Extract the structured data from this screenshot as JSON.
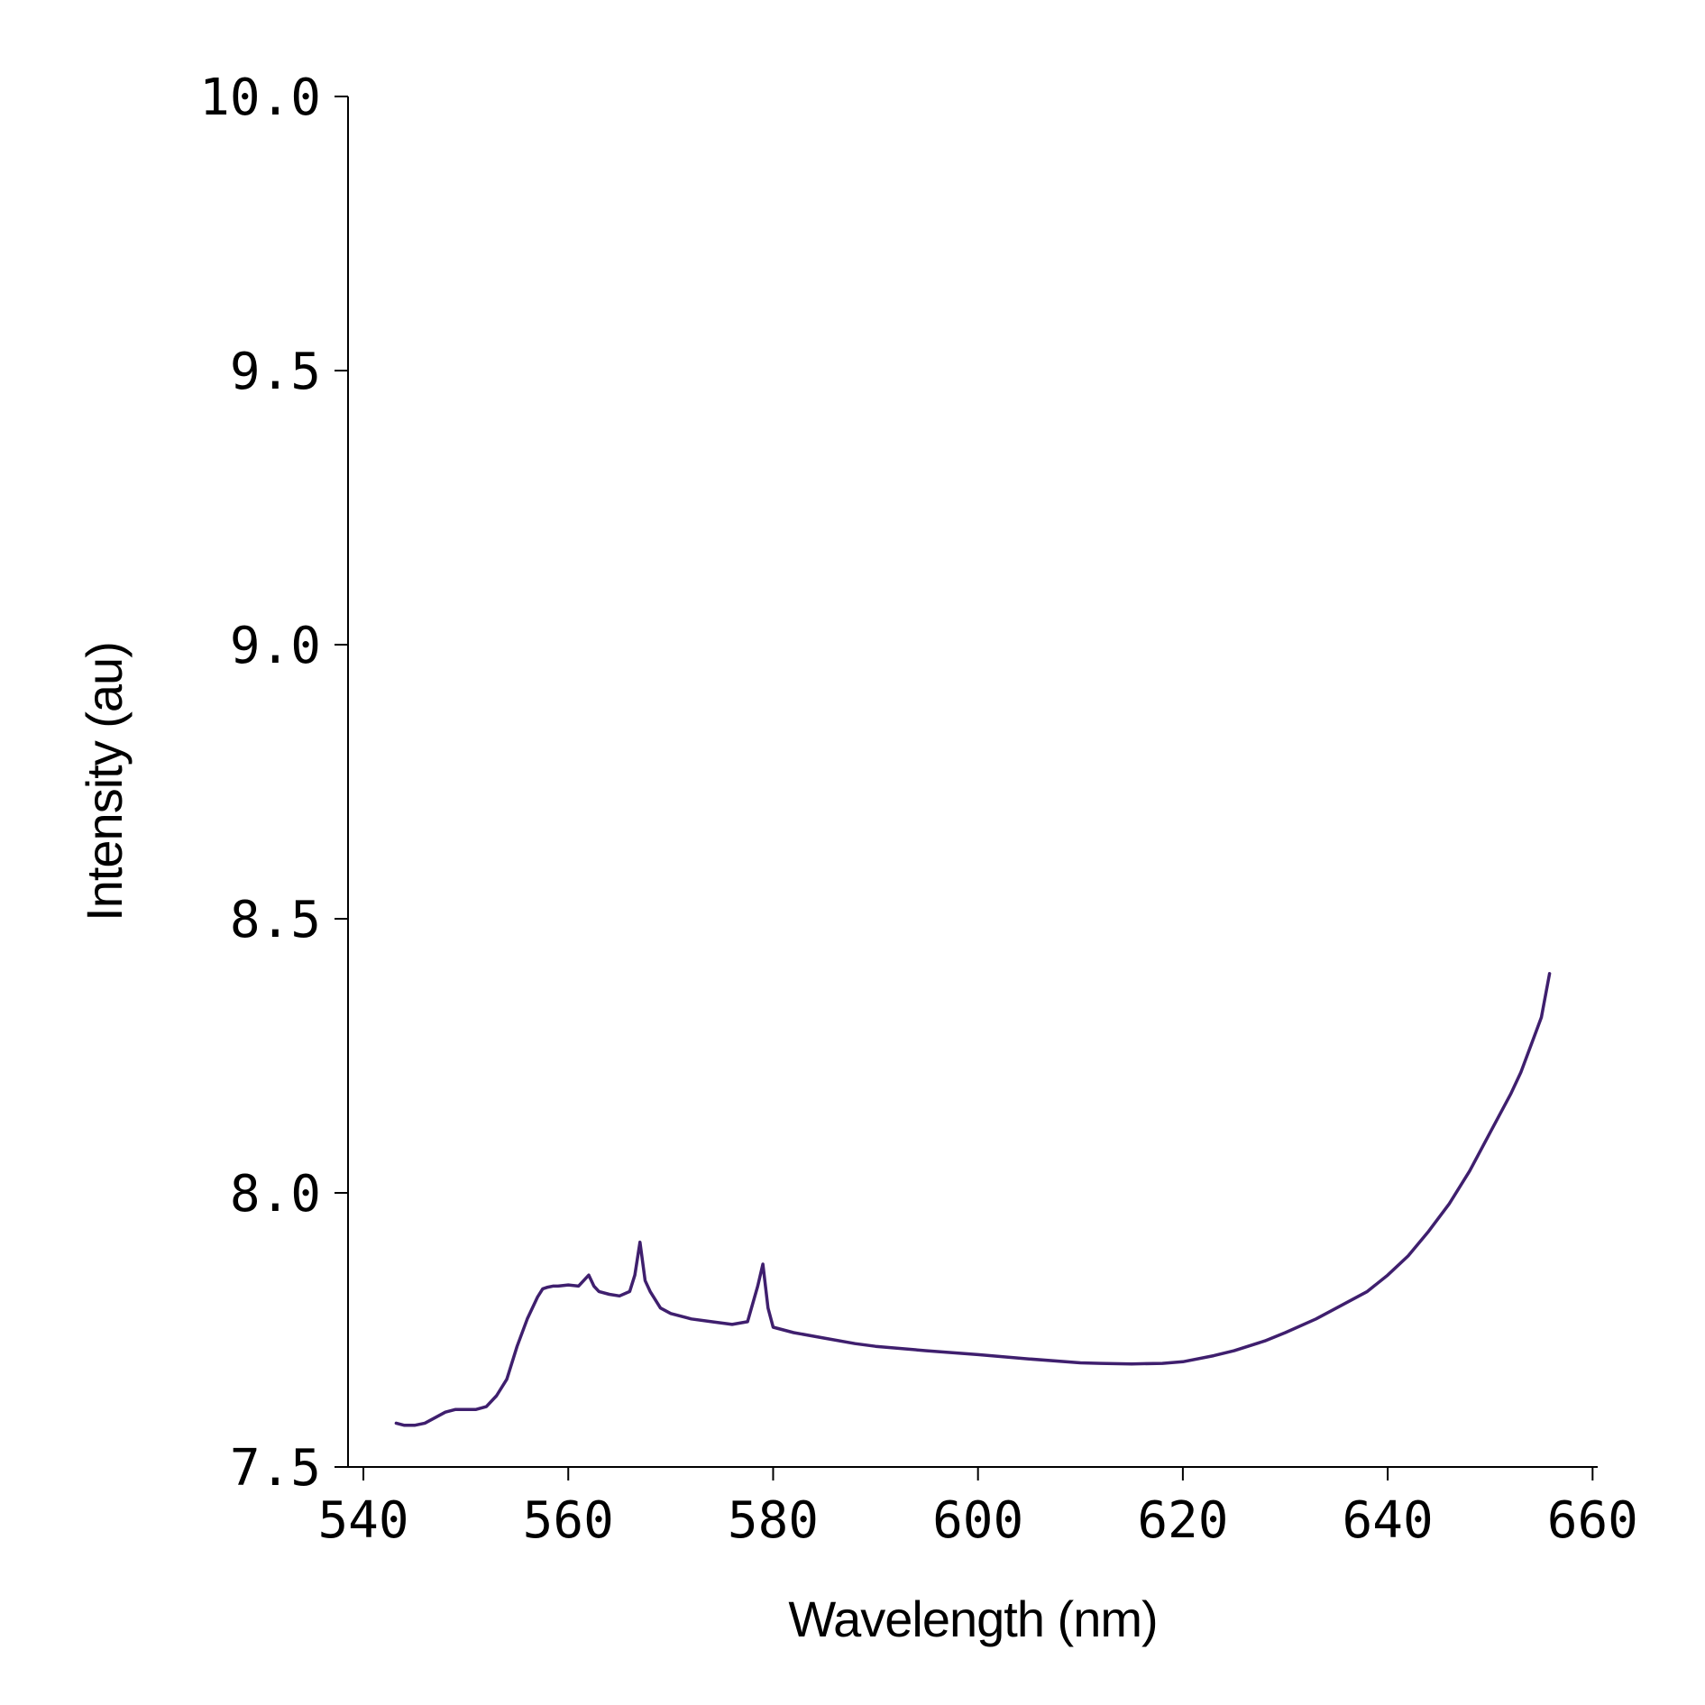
{
  "chart_data": {
    "type": "line",
    "title": "",
    "xlabel": "Wavelength (nm)",
    "ylabel": "Intensity (au)",
    "xlim": [
      538.5,
      660.5
    ],
    "ylim": [
      7.5,
      10.0
    ],
    "xticks": [
      540,
      560,
      580,
      600,
      620,
      640,
      660
    ],
    "xtick_labels": [
      "540",
      "560",
      "580",
      "600",
      "620",
      "640",
      "660"
    ],
    "yticks": [
      7.5,
      8.0,
      8.5,
      9.0,
      9.5,
      10.0
    ],
    "ytick_labels": [
      "7.5",
      "8.0",
      "8.5",
      "9.0",
      "9.5",
      "10.0"
    ],
    "grid": false,
    "legend": "none",
    "line_color": "#3f1f6e",
    "series": [
      {
        "x": [
          543.2,
          544.0,
          545.0,
          546.0,
          547.0,
          548.0,
          549.0,
          550.0,
          551.0,
          552.0,
          553.0,
          554.0,
          555.0,
          556.0,
          557.0,
          557.5,
          558.0,
          558.5,
          559.0,
          560.0,
          561.0,
          561.5,
          562.0,
          562.5,
          563.0,
          564.0,
          565.0,
          566.0,
          566.5,
          567.0,
          567.5,
          568.0,
          569.0,
          570.0,
          572.0,
          574.0,
          576.0,
          577.5,
          578.5,
          579.0,
          579.5,
          580.0,
          582.0,
          585.0,
          588.0,
          590.0,
          595.0,
          600.0,
          605.0,
          610.0,
          612.0,
          615.0,
          618.0,
          620.0,
          623.0,
          625.0,
          628.0,
          630.0,
          633.0,
          635.0,
          638.0,
          640.0,
          642.0,
          644.0,
          646.0,
          648.0,
          650.0,
          652.0,
          653.0,
          654.0,
          655.0,
          655.8
        ],
        "values": [
          7.58,
          7.576,
          7.576,
          7.58,
          7.59,
          7.6,
          7.605,
          7.605,
          7.605,
          7.61,
          7.63,
          7.66,
          7.72,
          7.77,
          7.81,
          7.825,
          7.828,
          7.83,
          7.83,
          7.832,
          7.83,
          7.84,
          7.85,
          7.83,
          7.82,
          7.815,
          7.812,
          7.82,
          7.85,
          7.91,
          7.84,
          7.82,
          7.79,
          7.78,
          7.77,
          7.765,
          7.76,
          7.765,
          7.83,
          7.87,
          7.79,
          7.755,
          7.745,
          7.735,
          7.725,
          7.72,
          7.712,
          7.705,
          7.697,
          7.69,
          7.689,
          7.688,
          7.689,
          7.692,
          7.703,
          7.712,
          7.73,
          7.745,
          7.77,
          7.79,
          7.82,
          7.85,
          7.885,
          7.93,
          7.98,
          8.04,
          8.11,
          8.18,
          8.22,
          8.27,
          8.32,
          8.4
        ]
      }
    ]
  }
}
